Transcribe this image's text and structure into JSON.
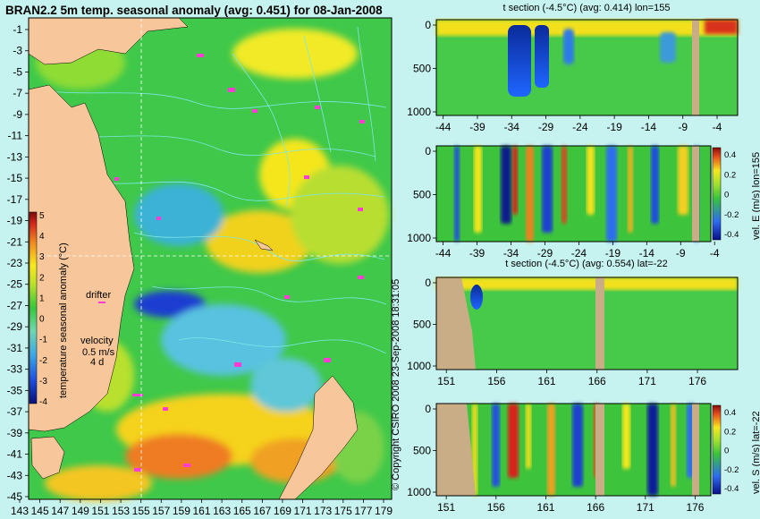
{
  "colors": {
    "background": "#c6f2ef",
    "land": "#f7c79b",
    "land_section": "#c8ad86",
    "contour": "#7fe7e6",
    "drifter": "#ff3bd6"
  },
  "map": {
    "title": "BRAN2.2 5m temp. seasonal anomaly (avg: 0.451) for 08-Jan-2008",
    "lat_ticks": [
      "-1",
      "-3",
      "-5",
      "-7",
      "-9",
      "-11",
      "-13",
      "-15",
      "-17",
      "-19",
      "-21",
      "-23",
      "-25",
      "-27",
      "-29",
      "-31",
      "-33",
      "-35",
      "-37",
      "-39",
      "-41",
      "-43",
      "-45"
    ],
    "lon_ticks": [
      "143",
      "145",
      "147",
      "149",
      "151",
      "153",
      "155",
      "157",
      "159",
      "161",
      "163",
      "165",
      "167",
      "169",
      "171",
      "173",
      "175",
      "177",
      "179"
    ],
    "colorbar": {
      "label": "temperature seasonal anomaly (°C)",
      "ticks": [
        "5",
        "4",
        "3",
        "2",
        "1",
        "0",
        "-1",
        "-2",
        "-3",
        "-4"
      ]
    },
    "drifter_label": "drifter",
    "velocity_label": [
      "velocity",
      "0.5 m/s",
      "4 d"
    ]
  },
  "copyright": "© Copyright CSIRO 2008  23-Sep-2008 18:31:05",
  "chart_data": [
    {
      "type": "heatmap",
      "title": "t section (-4.5°C) (avg: 0.414) lon=155",
      "x_ticks": [
        "-44",
        "-39",
        "-34",
        "-29",
        "-24",
        "-19",
        "-14",
        "-9",
        "-4"
      ],
      "y_ticks": [
        "0",
        "500",
        "1000"
      ]
    },
    {
      "type": "heatmap",
      "title": "",
      "x_ticks": [
        "-44",
        "-39",
        "-34",
        "-29",
        "-24",
        "-19",
        "-14",
        "-9",
        "-4"
      ],
      "y_ticks": [
        "0",
        "500",
        "1000"
      ],
      "colorbar_label": "vel. E (m/s) lon=155",
      "colorbar_ticks": [
        "0.4",
        "0.2",
        "0",
        "-0.2",
        "-0.4"
      ]
    },
    {
      "type": "heatmap",
      "title": "t section (-4.5°C) (avg: 0.554) lat=-22",
      "x_ticks": [
        "151",
        "156",
        "161",
        "166",
        "171",
        "176"
      ],
      "y_ticks": [
        "0",
        "500",
        "1000"
      ]
    },
    {
      "type": "heatmap",
      "title": "",
      "x_ticks": [
        "151",
        "156",
        "161",
        "166",
        "171",
        "176"
      ],
      "y_ticks": [
        "0",
        "500",
        "1000"
      ],
      "colorbar_label": "vel. S (m/s) lat=-22",
      "colorbar_ticks": [
        "0.4",
        "0.2",
        "0",
        "-0.2",
        "-0.4"
      ]
    }
  ]
}
